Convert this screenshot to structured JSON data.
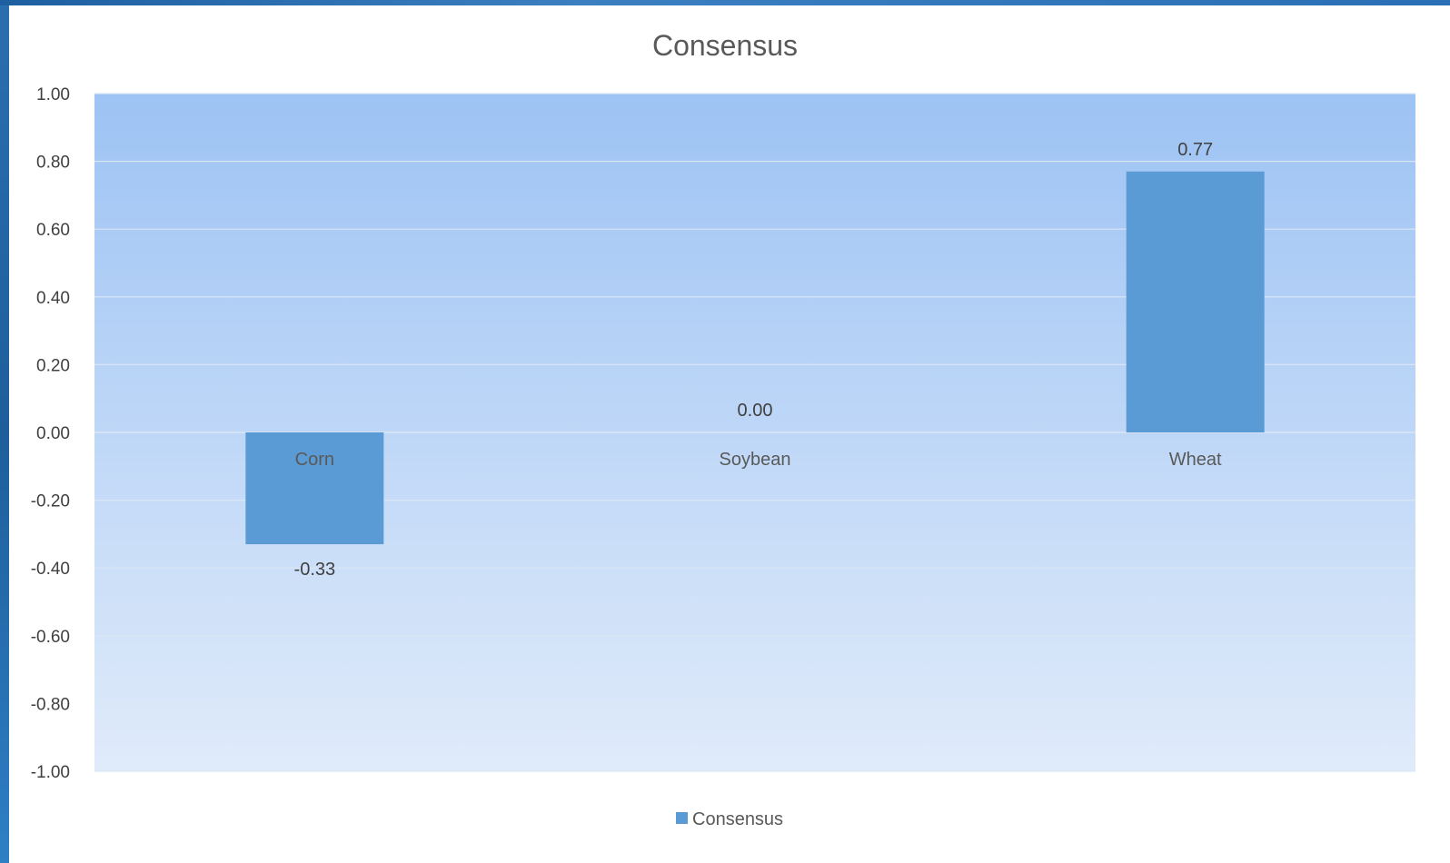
{
  "chart_data": {
    "type": "bar",
    "title": "Consensus",
    "xlabel": "",
    "ylabel": "",
    "categories": [
      "Corn",
      "Soybean",
      "Wheat"
    ],
    "series": [
      {
        "name": "Consensus",
        "values": [
          -0.33,
          0.0,
          0.77
        ]
      }
    ],
    "data_labels": [
      "-0.33",
      "0.00",
      "0.77"
    ],
    "ylim": [
      -1.0,
      1.0
    ],
    "yticks": [
      1.0,
      0.8,
      0.6,
      0.4,
      0.2,
      0.0,
      -0.2,
      -0.4,
      -0.6,
      -0.8,
      -1.0
    ],
    "ytick_labels": [
      "1.00",
      "0.80",
      "0.60",
      "0.40",
      "0.20",
      "0.00",
      "-0.20",
      "-0.40",
      "-0.60",
      "-0.80",
      "-1.00"
    ],
    "grid": true,
    "legend_position": "bottom",
    "colors": {
      "bar": "#5b9bd5",
      "plot_bg_top": "#9dc3f4",
      "plot_bg_bottom": "#e0ebfa",
      "gridline": "#dbe6f5"
    }
  }
}
